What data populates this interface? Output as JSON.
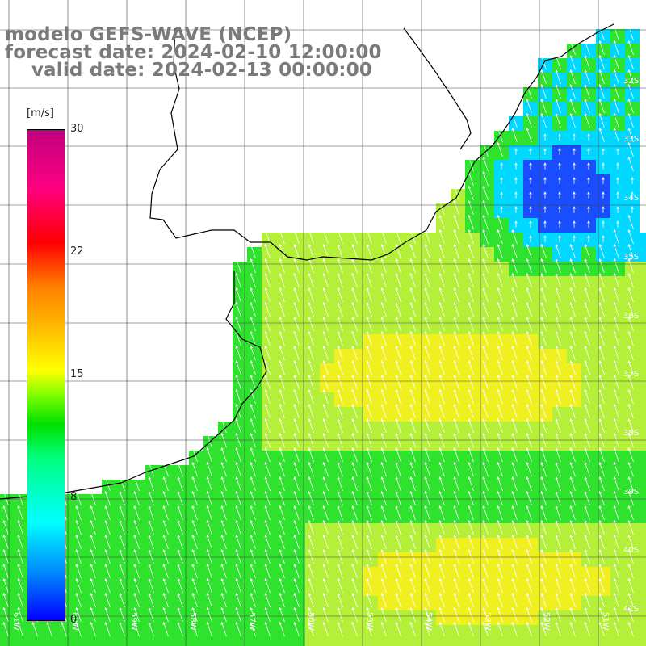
{
  "title": {
    "line1": "modelo GEFS-WAVE (NCEP)",
    "line2": "forecast date: 2024-02-10 12:00:00",
    "line3": "    valid date: 2024-02-13 00:00:00"
  },
  "colorbar": {
    "unit": "[m/s]",
    "ticks": [
      "30",
      "22",
      "15",
      "8",
      "0"
    ],
    "range": [
      0,
      30
    ]
  },
  "axes": {
    "lon_labels": [
      "61W",
      "60W",
      "59W",
      "58W",
      "57W",
      "56W",
      "55W",
      "54W",
      "53W",
      "52W",
      "51W"
    ],
    "lat_labels": [
      "32S",
      "33S",
      "34S",
      "35S",
      "36S",
      "37S",
      "38S",
      "39S",
      "40S",
      "41S"
    ]
  },
  "field": {
    "variable": "wind speed",
    "colors": {
      "blue": "#1a4dff",
      "cyan": "#00d8ff",
      "green": "#2ee22e",
      "yellow_green": "#b4f03a",
      "yellow": "#f0f020"
    }
  }
}
